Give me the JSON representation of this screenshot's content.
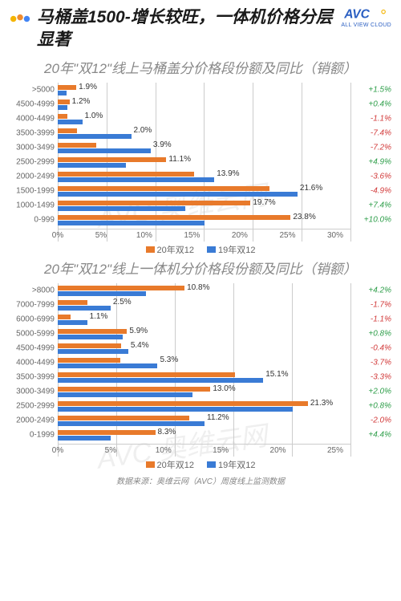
{
  "title": "马桶盖1500-增长较旺，一体机价格分层显著",
  "logo": {
    "text": "AVC",
    "sub": "ALL VIEW CLOUD",
    "color": "#2b5fc2"
  },
  "colors": {
    "orange": "#e87a2b",
    "blue": "#3a7bd5",
    "pos": "#2e9e4a",
    "neg": "#d23b3b",
    "grid": "#cccccc"
  },
  "watermark": "AVC 奥维云网",
  "source": "数据来源：奥维云网（AVC）周度线上监测数据",
  "legend": {
    "series1": "20年双12",
    "series2": "19年双12"
  },
  "chart1": {
    "title": "20年\"双12\"线上马桶盖分价格段份额及同比（销额）",
    "xmax": 30,
    "xstep": 5,
    "rows": [
      {
        "label": ">5000",
        "v1": 1.9,
        "v2": 0.9,
        "yoy": "+1.5%",
        "dir": "pos",
        "show": "1.9%"
      },
      {
        "label": "4500-4999",
        "v1": 1.2,
        "v2": 1.0,
        "yoy": "+0.4%",
        "dir": "pos",
        "show": "1.2%"
      },
      {
        "label": "4000-4499",
        "v1": 1.0,
        "v2": 2.5,
        "yoy": "-1.1%",
        "dir": "neg",
        "show": "1.0%"
      },
      {
        "label": "3500-3999",
        "v1": 2.0,
        "v2": 7.5,
        "yoy": "-7.4%",
        "dir": "neg",
        "show": "2.0%"
      },
      {
        "label": "3000-3499",
        "v1": 3.9,
        "v2": 9.5,
        "yoy": "-7.2%",
        "dir": "neg",
        "show": "3.9%"
      },
      {
        "label": "2500-2999",
        "v1": 11.1,
        "v2": 7.0,
        "yoy": "+4.9%",
        "dir": "pos",
        "show": "11.1%"
      },
      {
        "label": "2000-2499",
        "v1": 13.9,
        "v2": 16.0,
        "yoy": "-3.6%",
        "dir": "neg",
        "show": "13.9%"
      },
      {
        "label": "1500-1999",
        "v1": 21.6,
        "v2": 24.5,
        "yoy": "-4.9%",
        "dir": "neg",
        "show": "21.6%"
      },
      {
        "label": "1000-1499",
        "v1": 19.7,
        "v2": 13.0,
        "yoy": "+7.4%",
        "dir": "pos",
        "show": "19.7%"
      },
      {
        "label": "0-999",
        "v1": 23.8,
        "v2": 15.0,
        "yoy": "+10.0%",
        "dir": "pos",
        "show": "23.8%"
      }
    ]
  },
  "chart2": {
    "title": "20年\"双12\"线上一体机分价格段份额及同比（销额）",
    "xmax": 25,
    "xstep": 5,
    "rows": [
      {
        "label": ">8000",
        "v1": 10.8,
        "v2": 7.5,
        "yoy": "+4.2%",
        "dir": "pos",
        "show": "10.8%"
      },
      {
        "label": "7000-7999",
        "v1": 2.5,
        "v2": 4.5,
        "yoy": "-1.7%",
        "dir": "neg",
        "show": "2.5%"
      },
      {
        "label": "6000-6999",
        "v1": 1.1,
        "v2": 2.5,
        "yoy": "-1.1%",
        "dir": "neg",
        "show": "1.1%"
      },
      {
        "label": "5000-5999",
        "v1": 5.9,
        "v2": 5.5,
        "yoy": "+0.8%",
        "dir": "pos",
        "show": "5.9%"
      },
      {
        "label": "4500-4999",
        "v1": 5.4,
        "v2": 6.0,
        "yoy": "-0.4%",
        "dir": "neg",
        "show": "5.4%"
      },
      {
        "label": "4000-4499",
        "v1": 5.3,
        "v2": 8.5,
        "yoy": "-3.7%",
        "dir": "neg",
        "show": "5.3%"
      },
      {
        "label": "3500-3999",
        "v1": 15.1,
        "v2": 17.5,
        "yoy": "-3.3%",
        "dir": "neg",
        "show": "15.1%"
      },
      {
        "label": "3000-3499",
        "v1": 13.0,
        "v2": 11.5,
        "yoy": "+2.0%",
        "dir": "pos",
        "show": "13.0%"
      },
      {
        "label": "2500-2999",
        "v1": 21.3,
        "v2": 20.0,
        "yoy": "+0.8%",
        "dir": "pos",
        "show": "21.3%"
      },
      {
        "label": "2000-2499",
        "v1": 11.2,
        "v2": 12.5,
        "yoy": "-2.0%",
        "dir": "neg",
        "show": "11.2%"
      },
      {
        "label": "0-1999",
        "v1": 8.3,
        "v2": 4.5,
        "yoy": "+4.4%",
        "dir": "pos",
        "show": "8.3%"
      }
    ]
  }
}
